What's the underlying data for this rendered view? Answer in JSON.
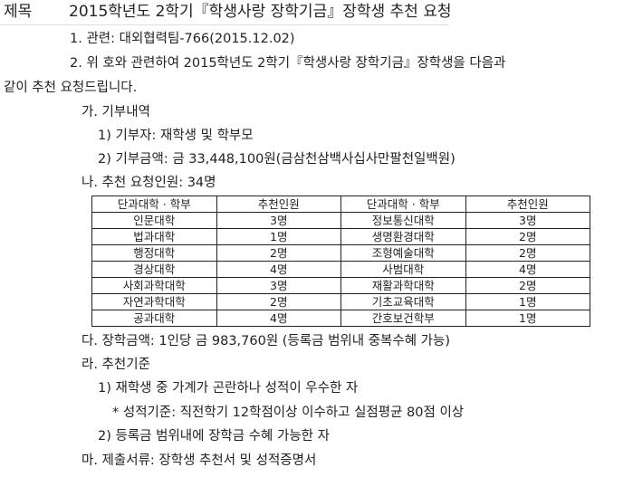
{
  "title": {
    "label": "제목",
    "text": "2015학년도 2학기『학생사랑 장학기금』장학생 추천 요청"
  },
  "lines": {
    "l1": "1. 관련: 대외협력팀-766(2015.12.02)",
    "l2": "2. 위 호와 관련하여 2015학년도 2학기『학생사랑 장학기금』장학생을 다음과",
    "l3": "같이 추천 요청드립니다.",
    "ga": "가. 기부내역",
    "ga1": "1) 기부자: 재학생 및 학부모",
    "ga2": "2) 기부금액: 금 33,448,100원(금삼천삼백사십사만팔천일백원)",
    "na": "나. 추천 요청인원: 34명",
    "da": "다. 장학금액: 1인당 금 983,760원 (등록금 범위내 중복수혜 가능)",
    "ra": "라. 추천기준",
    "ra1": "1) 재학생 중 가계가 곤란하나 성적이 우수한 자",
    "ra1note": "* 성적기준: 직전학기 12학점이상 이수하고 실점평균 80점 이상",
    "ra2": "2) 등록금 범위내에 장학금 수혜 가능한 자",
    "ma": "마. 제출서류: 장학생 추천서 및 성적증명서"
  },
  "table": {
    "headers": [
      "단과대학 · 학부",
      "추천인원",
      "단과대학 · 학부",
      "추천인원"
    ],
    "rows": [
      [
        "인문대학",
        "3명",
        "정보통신대학",
        "3명"
      ],
      [
        "법과대학",
        "1명",
        "생명환경대학",
        "2명"
      ],
      [
        "행정대학",
        "2명",
        "조형예술대학",
        "2명"
      ],
      [
        "경상대학",
        "4명",
        "사범대학",
        "4명"
      ],
      [
        "사회과학대학",
        "3명",
        "재활과학대학",
        "2명"
      ],
      [
        "자연과학대학",
        "2명",
        "기초교육대학",
        "1명"
      ],
      [
        "공과대학",
        "4명",
        "간호보건학부",
        "1명"
      ]
    ]
  }
}
